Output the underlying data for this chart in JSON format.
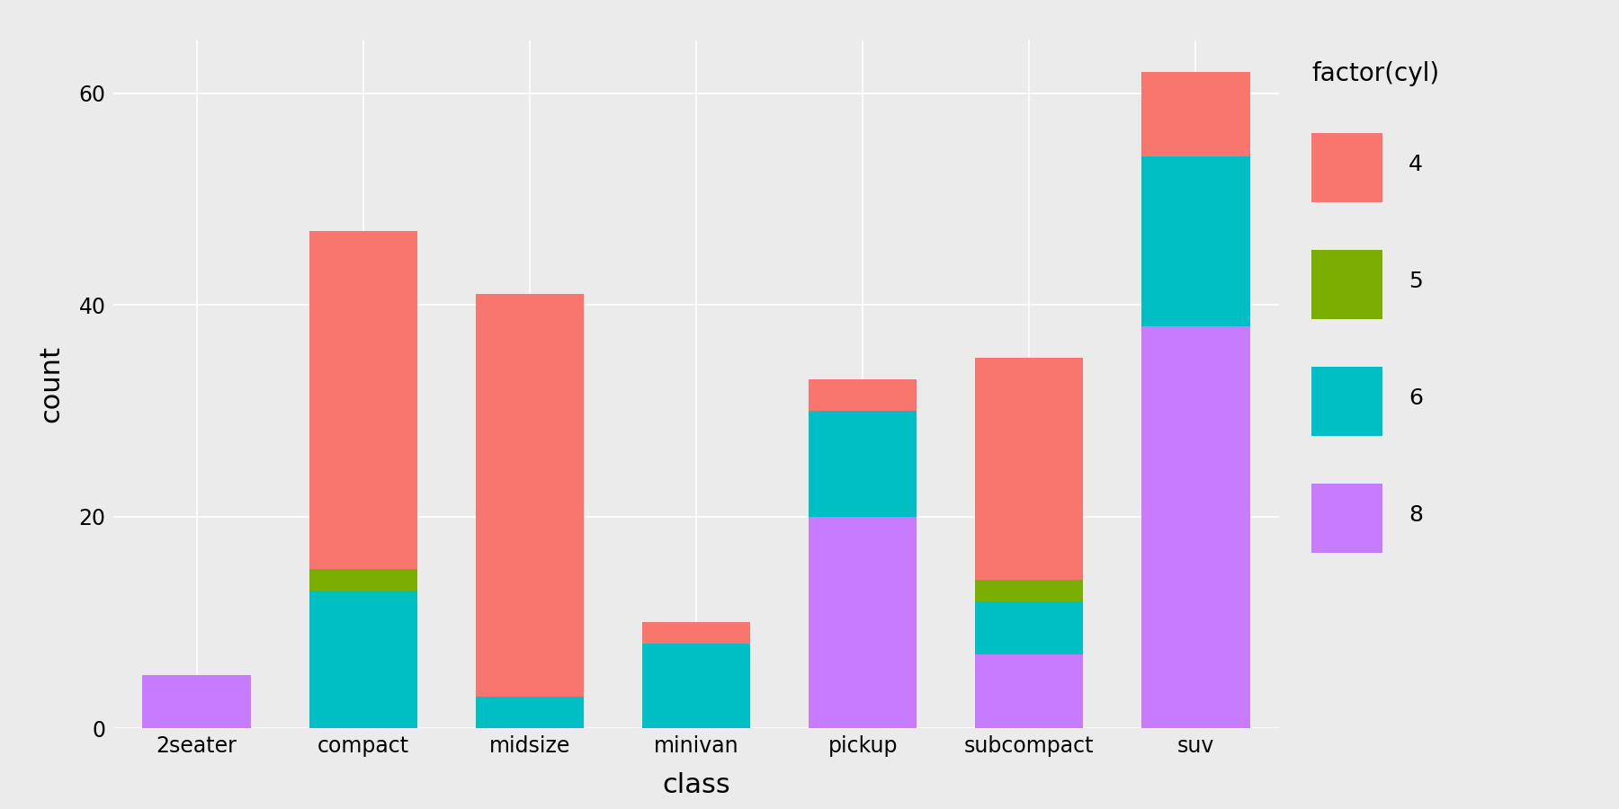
{
  "categories": [
    "2seater",
    "compact",
    "midsize",
    "minivan",
    "pickup",
    "subcompact",
    "suv"
  ],
  "stacks": {
    "8": [
      5,
      0,
      0,
      0,
      20,
      7,
      38
    ],
    "6": [
      0,
      13,
      3,
      8,
      10,
      5,
      16
    ],
    "5": [
      0,
      2,
      0,
      0,
      0,
      2,
      0
    ],
    "4": [
      0,
      32,
      38,
      2,
      3,
      21,
      8
    ]
  },
  "colors": {
    "4": "#F8766D",
    "5": "#7BAE00",
    "6": "#00BFC4",
    "8": "#C77CFF"
  },
  "legend_title": "factor(cyl)",
  "legend_labels": [
    "4",
    "5",
    "6",
    "8"
  ],
  "xlabel": "class",
  "ylabel": "count",
  "ylim": [
    0,
    65
  ],
  "yticks": [
    0,
    20,
    40,
    60
  ],
  "background_color": "#EBEBEB",
  "grid_color": "#FFFFFF",
  "axis_label_fontsize": 22,
  "tick_fontsize": 17,
  "legend_title_fontsize": 20,
  "legend_fontsize": 18,
  "bar_width": 0.65
}
